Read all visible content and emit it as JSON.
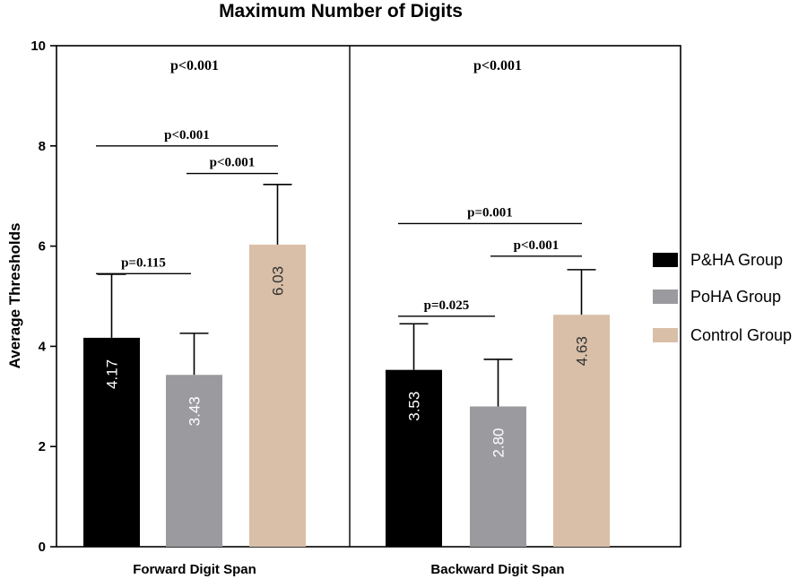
{
  "chart_data": {
    "type": "bar",
    "title": "Maximum Number of Digits",
    "ylabel": "Average Thresholds",
    "xlabel": "",
    "ylim": [
      0,
      10
    ],
    "yticks": [
      0,
      2,
      4,
      6,
      8,
      10
    ],
    "categories": [
      "Forward Digit Span",
      "Backward Digit Span"
    ],
    "series": [
      {
        "name": "P&HA Group",
        "color": "#000000",
        "values": [
          4.17,
          3.53
        ],
        "error": [
          1.27,
          0.92
        ],
        "labels": [
          "4.17",
          "3.53"
        ]
      },
      {
        "name": "PoHA Group",
        "color": "#9b9b9f",
        "values": [
          3.43,
          2.8
        ],
        "error": [
          0.83,
          0.94
        ],
        "labels": [
          "3.43",
          "2.80"
        ]
      },
      {
        "name": "Control Group",
        "color": "#d9bfa8",
        "values": [
          6.03,
          4.63
        ],
        "error": [
          1.2,
          0.9
        ],
        "labels": [
          "6.03",
          "4.63"
        ]
      }
    ],
    "overall_p": [
      "p<0.001",
      "p<0.001"
    ],
    "comparisons": [
      {
        "category": 0,
        "from": 0,
        "to": 1,
        "level": 5.45,
        "label": "p=0.115"
      },
      {
        "category": 0,
        "from": 1,
        "to": 2,
        "level": 7.45,
        "label": "p<0.001"
      },
      {
        "category": 0,
        "from": 0,
        "to": 2,
        "level": 8.0,
        "label": "p<0.001"
      },
      {
        "category": 1,
        "from": 0,
        "to": 1,
        "level": 4.6,
        "label": "p=0.025"
      },
      {
        "category": 1,
        "from": 1,
        "to": 2,
        "level": 5.8,
        "label": "p<0.001"
      },
      {
        "category": 1,
        "from": 0,
        "to": 2,
        "level": 6.45,
        "label": "p=0.001"
      }
    ],
    "legend_position": "right",
    "grid": false
  }
}
